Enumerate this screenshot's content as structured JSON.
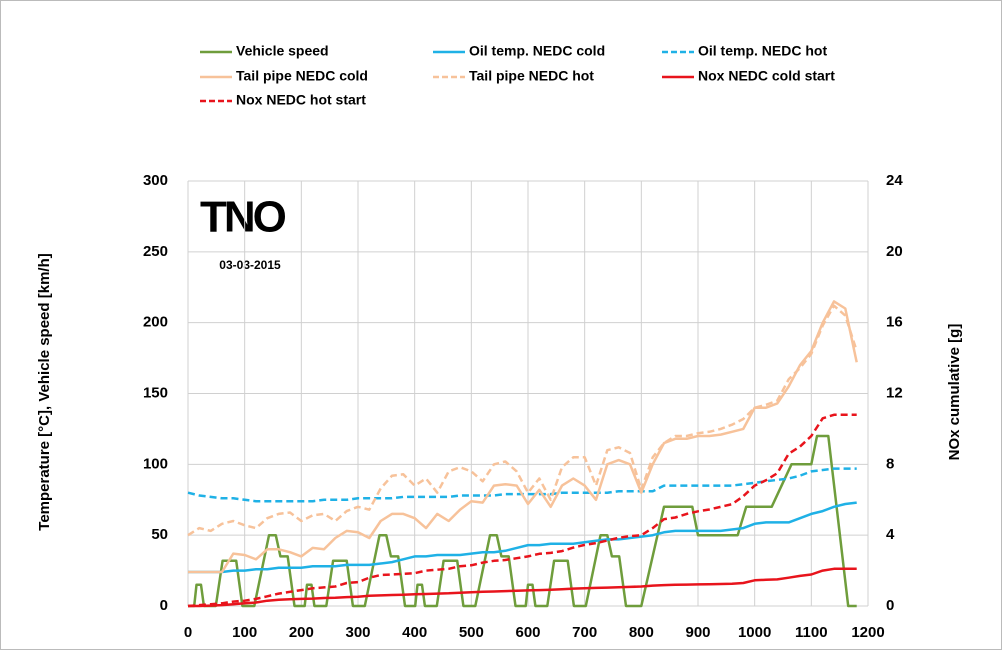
{
  "chart_data": {
    "type": "line",
    "ylabel": "Temperature [°C], Vehicle speed [km/h]",
    "y2label": "NOx cumulative [g]",
    "annotations": [
      "TNO",
      "03-03-2015"
    ],
    "xlim": [
      0,
      1200
    ],
    "xticks": [
      0,
      100,
      200,
      300,
      400,
      500,
      600,
      700,
      800,
      900,
      1000,
      1100,
      1200
    ],
    "ylim": [
      0,
      300
    ],
    "yticks": [
      0,
      50,
      100,
      150,
      200,
      250,
      300
    ],
    "y2lim": [
      0,
      24
    ],
    "y2ticks": [
      0,
      4,
      8,
      12,
      16,
      20,
      24
    ],
    "grid": true,
    "x": [
      0,
      20,
      40,
      60,
      80,
      100,
      120,
      140,
      160,
      180,
      200,
      220,
      240,
      260,
      280,
      300,
      320,
      340,
      360,
      380,
      400,
      420,
      440,
      460,
      480,
      500,
      520,
      540,
      560,
      580,
      600,
      620,
      640,
      660,
      680,
      700,
      720,
      740,
      760,
      780,
      800,
      820,
      840,
      860,
      880,
      900,
      920,
      940,
      960,
      980,
      1000,
      1020,
      1040,
      1060,
      1080,
      1100,
      1120,
      1140,
      1160,
      1180
    ],
    "series": [
      {
        "name": "Vehicle speed",
        "color": "#6f9d3c",
        "dash": false,
        "x": [
          0,
          11,
          15,
          23,
          28,
          49,
          61,
          85,
          96,
          117,
          143,
          155,
          163,
          176,
          188,
          195,
          206,
          210,
          218,
          223,
          244,
          256,
          280,
          291,
          312,
          338,
          350,
          358,
          371,
          383,
          390,
          401,
          405,
          413,
          418,
          439,
          451,
          475,
          486,
          507,
          533,
          545,
          553,
          566,
          578,
          585,
          596,
          600,
          608,
          613,
          634,
          646,
          670,
          681,
          702,
          728,
          740,
          748,
          761,
          773,
          780,
          800,
          840,
          890,
          900,
          970,
          985,
          1030,
          1065,
          1100,
          1110,
          1130,
          1165,
          1180
        ],
        "values": [
          0,
          0,
          15,
          15,
          0,
          0,
          32,
          32,
          0,
          0,
          50,
          50,
          35,
          35,
          0,
          0,
          0,
          15,
          15,
          0,
          0,
          32,
          32,
          0,
          0,
          50,
          50,
          35,
          35,
          0,
          0,
          0,
          15,
          15,
          0,
          0,
          32,
          32,
          0,
          0,
          50,
          50,
          35,
          35,
          0,
          0,
          0,
          15,
          15,
          0,
          0,
          32,
          32,
          0,
          0,
          50,
          50,
          35,
          35,
          0,
          0,
          0,
          70,
          70,
          50,
          50,
          70,
          70,
          100,
          100,
          120,
          120,
          0,
          0
        ]
      },
      {
        "name": "Oil temp. NEDC cold",
        "color": "#1fb1e6",
        "dash": false,
        "values": [
          24,
          24,
          24,
          24,
          25,
          25,
          26,
          26,
          27,
          27,
          27,
          28,
          28,
          28,
          29,
          29,
          29,
          30,
          31,
          33,
          35,
          35,
          36,
          36,
          36,
          37,
          38,
          38,
          39,
          41,
          43,
          43,
          44,
          44,
          44,
          45,
          46,
          47,
          47,
          48,
          49,
          50,
          52,
          53,
          53,
          53,
          53,
          53,
          54,
          55,
          58,
          59,
          59,
          59,
          62,
          65,
          67,
          70,
          72,
          73
        ]
      },
      {
        "name": "Oil temp. NEDC hot",
        "color": "#1fb1e6",
        "dash": true,
        "values": [
          80,
          78,
          77,
          76,
          76,
          75,
          74,
          74,
          74,
          74,
          74,
          74,
          75,
          75,
          75,
          76,
          76,
          76,
          76,
          77,
          77,
          77,
          77,
          77,
          78,
          78,
          78,
          78,
          79,
          79,
          79,
          79,
          79,
          80,
          80,
          80,
          80,
          80,
          81,
          81,
          81,
          81,
          85,
          85,
          85,
          85,
          85,
          85,
          85,
          86,
          87,
          88,
          89,
          90,
          92,
          95,
          96,
          97,
          97,
          97
        ]
      },
      {
        "name": "Tail pipe NEDC cold",
        "color": "#f7c29a",
        "dash": false,
        "values": [
          24,
          24,
          24,
          24,
          37,
          36,
          33,
          40,
          40,
          38,
          35,
          41,
          40,
          48,
          53,
          52,
          48,
          60,
          65,
          65,
          62,
          55,
          65,
          60,
          68,
          74,
          73,
          85,
          86,
          85,
          72,
          82,
          70,
          85,
          90,
          85,
          75,
          100,
          103,
          100,
          80,
          100,
          115,
          118,
          118,
          120,
          120,
          121,
          123,
          125,
          140,
          140,
          143,
          155,
          170,
          180,
          200,
          215,
          210,
          172
        ]
      },
      {
        "name": "Tail pipe NEDC hot",
        "color": "#f7c29a",
        "dash": true,
        "values": [
          50,
          55,
          53,
          58,
          60,
          57,
          55,
          62,
          65,
          66,
          60,
          64,
          65,
          60,
          67,
          70,
          68,
          83,
          92,
          93,
          85,
          90,
          80,
          95,
          98,
          95,
          88,
          100,
          102,
          95,
          80,
          90,
          75,
          98,
          105,
          105,
          85,
          110,
          112,
          108,
          82,
          105,
          115,
          120,
          120,
          122,
          123,
          125,
          128,
          132,
          140,
          142,
          145,
          160,
          168,
          178,
          198,
          212,
          205,
          180
        ]
      },
      {
        "name": "Nox NEDC cold start",
        "color": "#e8141c",
        "dash": false,
        "axis": "y2",
        "values": [
          0,
          0,
          0.02,
          0.05,
          0.1,
          0.15,
          0.2,
          0.3,
          0.35,
          0.38,
          0.4,
          0.42,
          0.45,
          0.47,
          0.5,
          0.52,
          0.58,
          0.6,
          0.62,
          0.64,
          0.66,
          0.68,
          0.7,
          0.72,
          0.75,
          0.78,
          0.8,
          0.82,
          0.84,
          0.86,
          0.88,
          0.9,
          0.92,
          0.95,
          0.98,
          1.0,
          1.02,
          1.04,
          1.06,
          1.08,
          1.1,
          1.15,
          1.18,
          1.2,
          1.21,
          1.22,
          1.23,
          1.24,
          1.26,
          1.3,
          1.45,
          1.48,
          1.5,
          1.6,
          1.7,
          1.78,
          2.0,
          2.1,
          2.1,
          2.1
        ]
      },
      {
        "name": "Nox NEDC hot start",
        "color": "#e8141c",
        "dash": true,
        "axis": "y2",
        "values": [
          0,
          0.05,
          0.1,
          0.15,
          0.25,
          0.3,
          0.4,
          0.55,
          0.7,
          0.8,
          0.9,
          1.0,
          1.05,
          1.1,
          1.3,
          1.35,
          1.6,
          1.75,
          1.78,
          1.82,
          1.85,
          2.0,
          2.05,
          2.1,
          2.25,
          2.3,
          2.45,
          2.55,
          2.6,
          2.7,
          2.8,
          2.95,
          3.0,
          3.1,
          3.3,
          3.45,
          3.55,
          3.7,
          3.85,
          3.95,
          4.0,
          4.4,
          4.9,
          5.0,
          5.2,
          5.35,
          5.45,
          5.6,
          5.75,
          6.2,
          6.8,
          7.1,
          7.5,
          8.6,
          9.0,
          9.6,
          10.6,
          10.8,
          10.8,
          10.8
        ]
      }
    ]
  }
}
